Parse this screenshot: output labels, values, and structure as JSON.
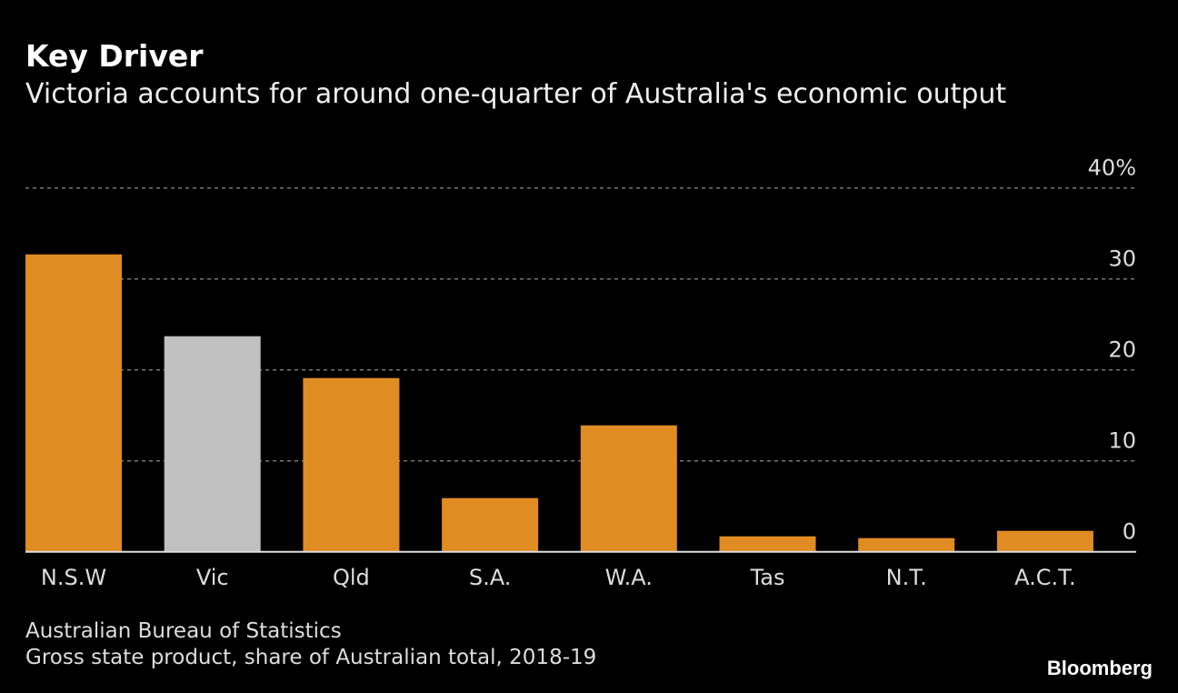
{
  "chart_data": {
    "type": "bar",
    "title": "Key Driver",
    "subtitle": "Victoria accounts for around one-quarter of Australia's economic output",
    "categories": [
      "N.S.W",
      "Vic",
      "Qld",
      "S.A.",
      "W.A.",
      "Tas",
      "N.T.",
      "A.C.T."
    ],
    "values": [
      32.7,
      23.7,
      19.1,
      5.9,
      13.9,
      1.7,
      1.5,
      2.3
    ],
    "highlight": "Vic",
    "ylim": [
      0,
      40
    ],
    "yticks": [
      "0",
      "10",
      "20",
      "30",
      "40%"
    ],
    "ytick_values": [
      0,
      10,
      20,
      30,
      40
    ],
    "grid": true,
    "yaxis_side": "right",
    "colors": {
      "bar": "#e08c22",
      "highlight": "#c0c0c0",
      "grid": "#777777",
      "background": "#000000"
    }
  },
  "footer": {
    "source": "Australian Bureau of Statistics",
    "note": "Gross state product, share of Australian total, 2018-19",
    "brand": "Bloomberg"
  }
}
